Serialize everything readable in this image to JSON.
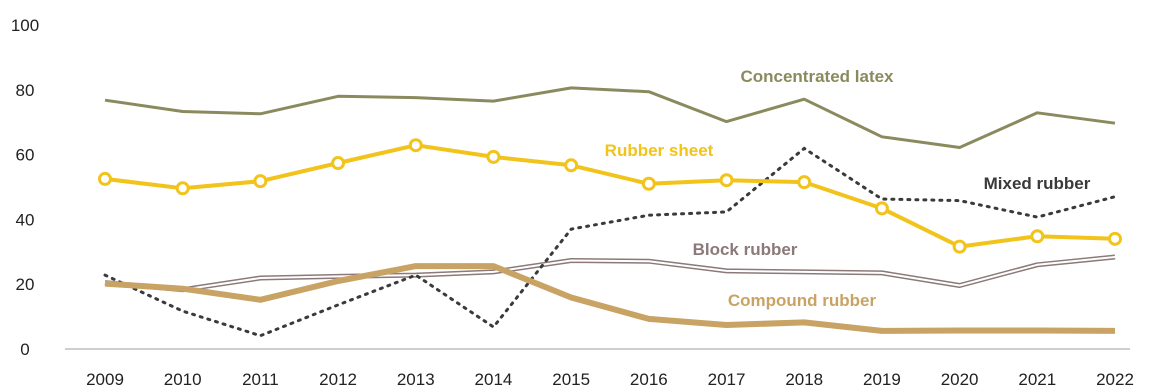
{
  "chart_data": {
    "type": "line",
    "title": "",
    "xlabel": "",
    "ylabel": "",
    "ylim": [
      0,
      100
    ],
    "yticks": [
      0,
      20,
      40,
      60,
      80,
      100
    ],
    "grid": false,
    "legend": "inline labels",
    "x": [
      "2009",
      "2010",
      "2011",
      "2012",
      "2013",
      "2014",
      "2015",
      "2016",
      "2017",
      "2018",
      "2019",
      "2020",
      "2021",
      "2022"
    ],
    "series": [
      {
        "name": "Concentrated latex",
        "color": "#8b8a5e",
        "style": "solid",
        "values": [
          76.8,
          73.3,
          72.6,
          78.0,
          77.6,
          76.5,
          80.6,
          79.4,
          70.2,
          77.1,
          65.5,
          62.2,
          72.9,
          69.7
        ]
      },
      {
        "name": "Rubber sheet",
        "color": "#f2c31a",
        "style": "solid-markers",
        "values": [
          52.5,
          49.6,
          51.8,
          57.4,
          62.9,
          59.3,
          56.7,
          51.0,
          52.1,
          51.5,
          43.4,
          31.6,
          34.8,
          34.0
        ]
      },
      {
        "name": "Mixed rubber",
        "color": "#3a3a3a",
        "style": "dotted",
        "values": [
          22.8,
          11.7,
          4.1,
          13.6,
          22.8,
          6.8,
          37.0,
          41.3,
          42.3,
          61.9,
          46.3,
          45.8,
          40.7,
          47.0
        ]
      },
      {
        "name": "Block rubber",
        "color": "#8c7979",
        "style": "double",
        "values": [
          20.5,
          18.3,
          21.9,
          22.4,
          22.8,
          23.8,
          27.3,
          27.1,
          24.1,
          23.8,
          23.5,
          19.6,
          26.0,
          28.4
        ]
      },
      {
        "name": "Compound rubber",
        "color": "#c9a364",
        "style": "thick",
        "values": [
          20.2,
          18.6,
          15.2,
          21.0,
          25.6,
          25.6,
          15.9,
          9.3,
          7.4,
          8.2,
          5.6,
          5.7,
          5.7,
          5.6
        ]
      }
    ]
  }
}
